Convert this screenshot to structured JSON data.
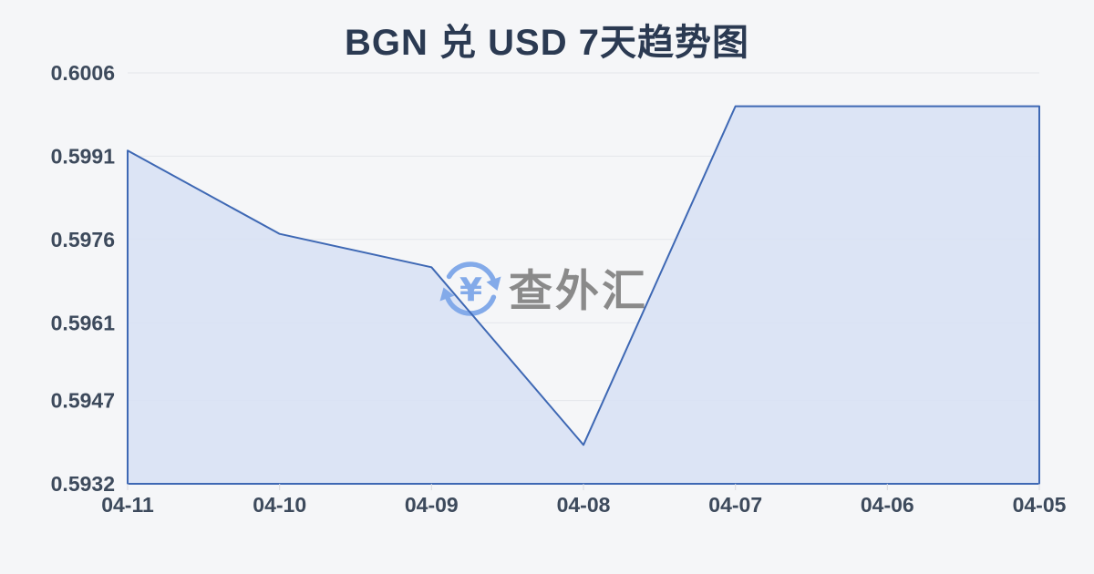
{
  "page": {
    "background": "#f5f6f8"
  },
  "header": {
    "title": "BGN 兑 USD 7天趋势图"
  },
  "watermark": {
    "text": "查外汇",
    "icon": "currency-exchange-icon",
    "icon_symbol": "¥"
  },
  "chart_data": {
    "type": "area",
    "title": "BGN 兑 USD 7天趋势图",
    "x": [
      "04-11",
      "04-10",
      "04-09",
      "04-08",
      "04-07",
      "04-06",
      "04-05"
    ],
    "series": [
      {
        "name": "BGN 兑 USD",
        "values": [
          0.5992,
          0.5977,
          0.5971,
          0.5939,
          0.6,
          0.6,
          0.6
        ]
      }
    ],
    "y_ticks": [
      "0.6006",
      "0.5991",
      "0.5976",
      "0.5961",
      "0.5947",
      "0.5932"
    ],
    "ylim": [
      0.5932,
      0.6006
    ],
    "xlabel": "",
    "ylabel": "",
    "grid": true,
    "legend": "none",
    "colors": {
      "line": "#3e68b4",
      "fill": "#d9e2f4",
      "gridline": "#e3e5e9",
      "tick": "#d9dbdf",
      "axis_label": "#3d4a5c",
      "title": "#2b3a52",
      "watermark_text": "#8a8a8a",
      "watermark_icon": "#83aae9",
      "background": "#f5f6f8"
    }
  }
}
